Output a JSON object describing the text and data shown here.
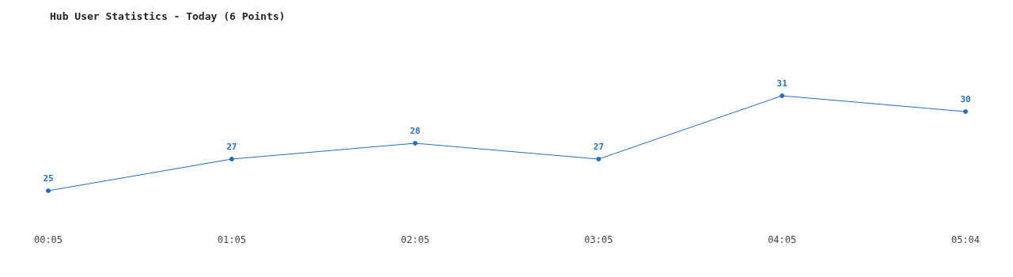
{
  "chart_data": {
    "type": "line",
    "title": "Hub User Statistics - Today (6 Points)",
    "categories": [
      "00:05",
      "01:05",
      "02:05",
      "03:05",
      "04:05",
      "05:04"
    ],
    "series": [
      {
        "color": "#1f6fc6",
        "values": [
          25,
          27,
          28,
          27,
          31,
          30
        ]
      }
    ],
    "data_labels": true,
    "marker": "circle",
    "line_style": "solid",
    "grid": false,
    "tick_labels": "x"
  }
}
